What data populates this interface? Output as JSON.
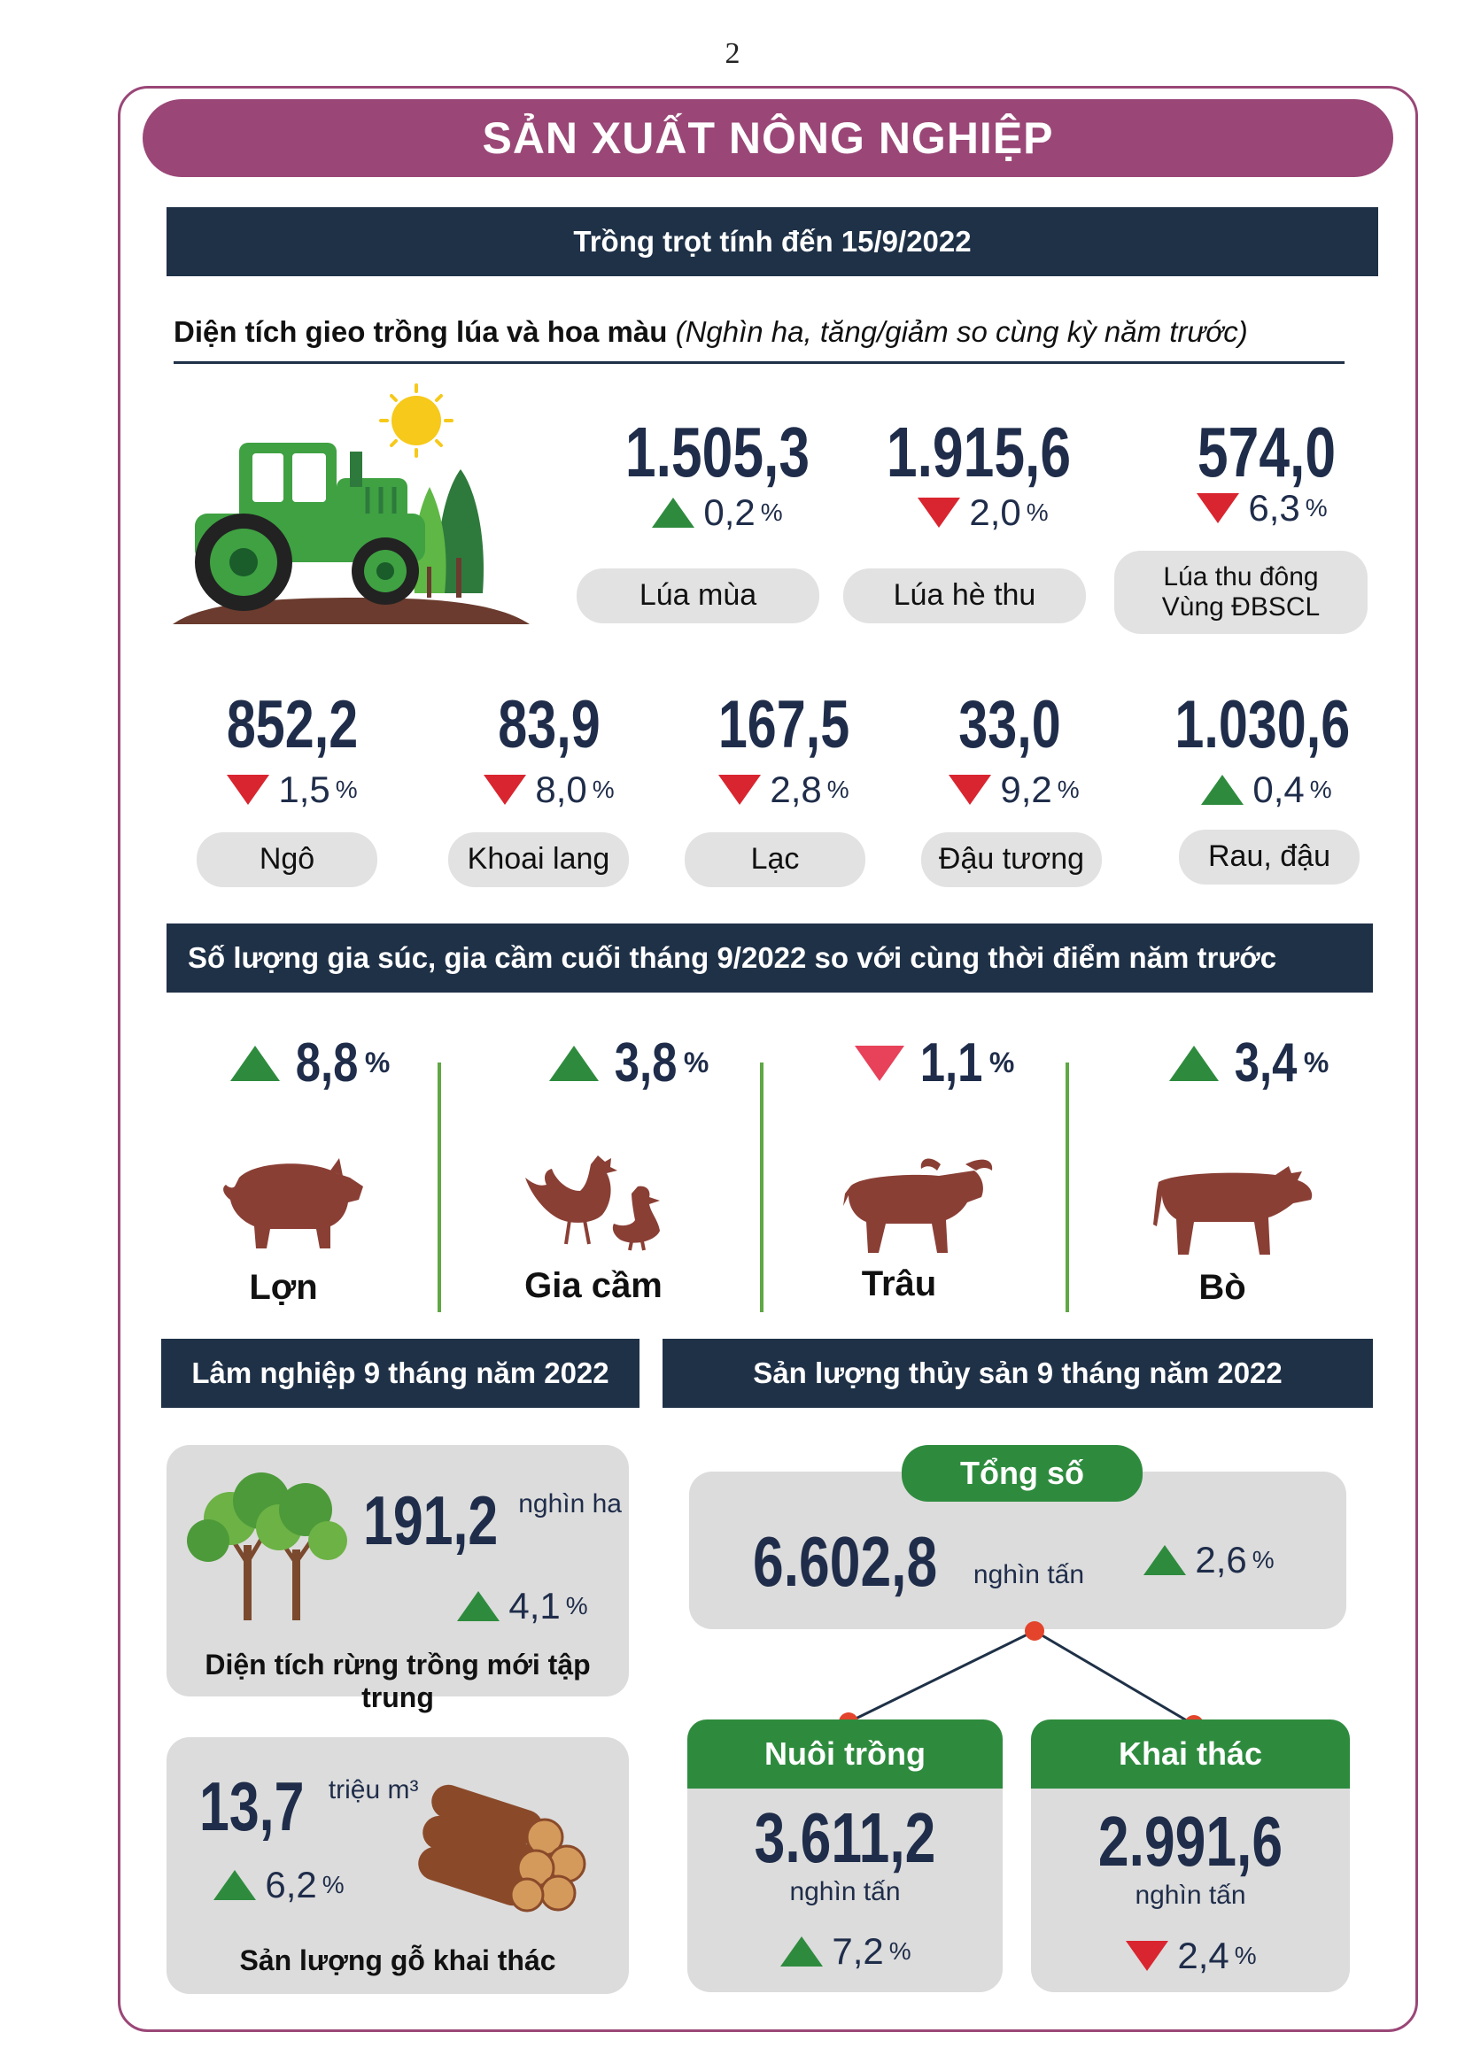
{
  "page_number": "2",
  "main_title": "SẢN XUẤT NÔNG NGHIỆP",
  "crops_section": {
    "title": "Trồng trọt tính đến 15/9/2022",
    "subtitle_bold": "Diện tích gieo trồng lúa và hoa màu",
    "subtitle_italic": "(Nghìn ha, tăng/giảm so cùng kỳ năm trước)",
    "row1": [
      {
        "value": "1.505,3",
        "direction": "up",
        "pct": "0,2",
        "unit": "%",
        "label_line1": "Lúa mùa",
        "label_line2": ""
      },
      {
        "value": "1.915,6",
        "direction": "down",
        "pct": "2,0",
        "unit": "%",
        "label_line1": "Lúa hè thu",
        "label_line2": ""
      },
      {
        "value": "574,0",
        "direction": "down",
        "pct": "6,3",
        "unit": "%",
        "label_line1": "Lúa thu đông",
        "label_line2": "Vùng ĐBSCL"
      }
    ],
    "row2": [
      {
        "value": "852,2",
        "direction": "down",
        "pct": "1,5",
        "unit": "%",
        "label": "Ngô"
      },
      {
        "value": "83,9",
        "direction": "down",
        "pct": "8,0",
        "unit": "%",
        "label": "Khoai lang"
      },
      {
        "value": "167,5",
        "direction": "down",
        "pct": "2,8",
        "unit": "%",
        "label": "Lạc"
      },
      {
        "value": "33,0",
        "direction": "down",
        "pct": "9,2",
        "unit": "%",
        "label": "Đậu tương"
      },
      {
        "value": "1.030,6",
        "direction": "up",
        "pct": "0,4",
        "unit": "%",
        "label": "Rau, đậu"
      }
    ]
  },
  "livestock_section": {
    "title": "Số lượng gia súc, gia cầm cuối tháng 9/2022 so với cùng thời điểm năm trước",
    "items": [
      {
        "label": "Lợn",
        "direction": "up",
        "pct": "8,8",
        "unit": "%",
        "icon": "pig-icon"
      },
      {
        "label": "Gia cầm",
        "direction": "up",
        "pct": "3,8",
        "unit": "%",
        "icon": "poultry-icon"
      },
      {
        "label": "Trâu",
        "direction": "down",
        "pct": "1,1",
        "unit": "%",
        "icon": "buffalo-icon"
      },
      {
        "label": "Bò",
        "direction": "up",
        "pct": "3,4",
        "unit": "%",
        "icon": "cow-icon"
      }
    ]
  },
  "forestry_section": {
    "title": "Lâm nghiệp 9 tháng năm 2022",
    "forest_area": {
      "value": "191,2",
      "unit": "nghìn ha",
      "pct": "4,1",
      "pct_unit": "%",
      "direction": "up",
      "label": "Diện tích rừng trồng mới tập trung"
    },
    "timber": {
      "value": "13,7",
      "unit": "triệu m³",
      "pct": "6,2",
      "pct_unit": "%",
      "direction": "up",
      "label": "Sản lượng gỗ khai thác"
    }
  },
  "fishery_section": {
    "title": "Sản lượng thủy sản 9 tháng năm 2022",
    "total": {
      "label": "Tổng số",
      "value": "6.602,8",
      "unit": "nghìn tấn",
      "pct": "2,6",
      "pct_unit": "%",
      "direction": "up"
    },
    "aquaculture": {
      "label": "Nuôi trồng",
      "value": "3.611,2",
      "unit": "nghìn tấn",
      "pct": "7,2",
      "pct_unit": "%",
      "direction": "up"
    },
    "capture": {
      "label": "Khai thác",
      "value": "2.991,6",
      "unit": "nghìn tấn",
      "pct": "2,4",
      "pct_unit": "%",
      "direction": "down"
    }
  },
  "colors": {
    "accent": "#9a4777",
    "navy": "#1f3147",
    "green": "#2e8b3e",
    "red": "#d9252f",
    "grey": "#dcdcdc",
    "animal": "#8a3f35"
  }
}
